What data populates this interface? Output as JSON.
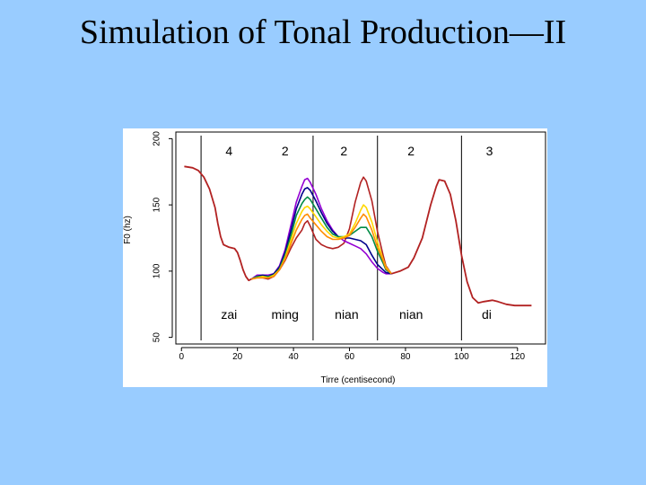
{
  "slide": {
    "title": "Simulation of Tonal Production—II"
  },
  "chart_data": {
    "type": "line",
    "title": "",
    "xlabel": "Tirre (centisecond)",
    "ylabel": "F0 (hz)",
    "xlim": [
      -2,
      130
    ],
    "ylim": [
      45,
      205
    ],
    "x_ticks": [
      0,
      20,
      40,
      60,
      80,
      100,
      120
    ],
    "y_ticks": [
      50,
      100,
      150,
      200
    ],
    "grid": false,
    "boundaries": [
      7,
      47,
      70,
      100
    ],
    "tones": [
      {
        "x": 17,
        "label": "4"
      },
      {
        "x": 37,
        "label": "2"
      },
      {
        "x": 58,
        "label": "2"
      },
      {
        "x": 82,
        "label": "2"
      },
      {
        "x": 110,
        "label": "3"
      }
    ],
    "syllables": [
      {
        "x": 17,
        "label": "zai"
      },
      {
        "x": 37,
        "label": "ming"
      },
      {
        "x": 59,
        "label": "nian"
      },
      {
        "x": 82,
        "label": "nian"
      },
      {
        "x": 109,
        "label": "di"
      }
    ],
    "common_start": [
      [
        1,
        179
      ],
      [
        4,
        178
      ],
      [
        6,
        176
      ],
      [
        8,
        171
      ],
      [
        10,
        162
      ],
      [
        12,
        148
      ],
      [
        13,
        136
      ],
      [
        14,
        126
      ],
      [
        15,
        120
      ],
      [
        17,
        118
      ],
      [
        19,
        117
      ],
      [
        20,
        114
      ],
      [
        21,
        108
      ],
      [
        22,
        101
      ],
      [
        23,
        96
      ],
      [
        24,
        93
      ],
      [
        25,
        94
      ]
    ],
    "common_end": [
      [
        75,
        98
      ],
      [
        78,
        100
      ],
      [
        81,
        103
      ],
      [
        83,
        110
      ],
      [
        86,
        125
      ],
      [
        89,
        150
      ],
      [
        91,
        164
      ],
      [
        92,
        169
      ],
      [
        94,
        168
      ],
      [
        96,
        158
      ],
      [
        98,
        138
      ],
      [
        100,
        112
      ],
      [
        102,
        92
      ],
      [
        104,
        80
      ],
      [
        106,
        76
      ],
      [
        108,
        77
      ],
      [
        111,
        78
      ],
      [
        113,
        77
      ],
      [
        116,
        75
      ],
      [
        119,
        74
      ],
      [
        122,
        74
      ],
      [
        125,
        74
      ]
    ],
    "series": [
      {
        "color": "#b22222",
        "values": [
          [
            25,
            94
          ],
          [
            27,
            95
          ],
          [
            29,
            95
          ],
          [
            31,
            94
          ],
          [
            33,
            96
          ],
          [
            35,
            101
          ],
          [
            37,
            108
          ],
          [
            39,
            117
          ],
          [
            41,
            125
          ],
          [
            43,
            131
          ],
          [
            44,
            136
          ],
          [
            45,
            138
          ],
          [
            46,
            134
          ],
          [
            47,
            129
          ],
          [
            48,
            124
          ],
          [
            50,
            120
          ],
          [
            52,
            118
          ],
          [
            54,
            117
          ],
          [
            56,
            118
          ],
          [
            58,
            121
          ],
          [
            60,
            132
          ],
          [
            62,
            152
          ],
          [
            64,
            167
          ],
          [
            65,
            171
          ],
          [
            66,
            168
          ],
          [
            68,
            153
          ],
          [
            70,
            130
          ],
          [
            72,
            112
          ],
          [
            73,
            104
          ],
          [
            75,
            98
          ]
        ]
      },
      {
        "color": "#9400d3",
        "values": [
          [
            25,
            94
          ],
          [
            27,
            97
          ],
          [
            29,
            97
          ],
          [
            31,
            97
          ],
          [
            33,
            98
          ],
          [
            35,
            104
          ],
          [
            37,
            116
          ],
          [
            39,
            134
          ],
          [
            41,
            152
          ],
          [
            43,
            164
          ],
          [
            44,
            169
          ],
          [
            45,
            170
          ],
          [
            46,
            167
          ],
          [
            48,
            158
          ],
          [
            50,
            147
          ],
          [
            52,
            138
          ],
          [
            54,
            131
          ],
          [
            56,
            126
          ],
          [
            58,
            123
          ],
          [
            60,
            121
          ],
          [
            62,
            119
          ],
          [
            64,
            117
          ],
          [
            66,
            113
          ],
          [
            68,
            107
          ],
          [
            70,
            102
          ],
          [
            72,
            99
          ],
          [
            73,
            98
          ],
          [
            75,
            98
          ]
        ]
      },
      {
        "color": "#00008b",
        "values": [
          [
            25,
            94
          ],
          [
            27,
            96
          ],
          [
            29,
            97
          ],
          [
            31,
            96
          ],
          [
            33,
            98
          ],
          [
            35,
            103
          ],
          [
            37,
            114
          ],
          [
            39,
            130
          ],
          [
            41,
            147
          ],
          [
            43,
            158
          ],
          [
            44,
            162
          ],
          [
            45,
            163
          ],
          [
            46,
            161
          ],
          [
            48,
            153
          ],
          [
            50,
            144
          ],
          [
            52,
            136
          ],
          [
            54,
            130
          ],
          [
            56,
            126
          ],
          [
            58,
            125
          ],
          [
            60,
            125
          ],
          [
            62,
            124
          ],
          [
            64,
            123
          ],
          [
            66,
            120
          ],
          [
            68,
            112
          ],
          [
            70,
            105
          ],
          [
            72,
            101
          ],
          [
            73,
            99
          ],
          [
            75,
            98
          ]
        ]
      },
      {
        "color": "#008b45",
        "values": [
          [
            25,
            94
          ],
          [
            27,
            96
          ],
          [
            29,
            96
          ],
          [
            31,
            96
          ],
          [
            33,
            97
          ],
          [
            35,
            102
          ],
          [
            37,
            112
          ],
          [
            39,
            126
          ],
          [
            41,
            142
          ],
          [
            43,
            151
          ],
          [
            44,
            154
          ],
          [
            45,
            156
          ],
          [
            46,
            154
          ],
          [
            48,
            147
          ],
          [
            50,
            140
          ],
          [
            52,
            133
          ],
          [
            54,
            128
          ],
          [
            56,
            126
          ],
          [
            58,
            126
          ],
          [
            60,
            127
          ],
          [
            62,
            130
          ],
          [
            64,
            133
          ],
          [
            66,
            133
          ],
          [
            68,
            126
          ],
          [
            70,
            115
          ],
          [
            72,
            106
          ],
          [
            73,
            101
          ],
          [
            75,
            98
          ]
        ]
      },
      {
        "color": "#ffd700",
        "values": [
          [
            25,
            94
          ],
          [
            27,
            95
          ],
          [
            29,
            96
          ],
          [
            31,
            95
          ],
          [
            33,
            97
          ],
          [
            35,
            101
          ],
          [
            37,
            110
          ],
          [
            39,
            123
          ],
          [
            41,
            136
          ],
          [
            43,
            145
          ],
          [
            44,
            148
          ],
          [
            45,
            149
          ],
          [
            46,
            147
          ],
          [
            48,
            141
          ],
          [
            50,
            135
          ],
          [
            52,
            130
          ],
          [
            54,
            126
          ],
          [
            56,
            125
          ],
          [
            58,
            126
          ],
          [
            60,
            128
          ],
          [
            62,
            136
          ],
          [
            64,
            146
          ],
          [
            65,
            150
          ],
          [
            66,
            148
          ],
          [
            68,
            137
          ],
          [
            70,
            122
          ],
          [
            72,
            109
          ],
          [
            73,
            103
          ],
          [
            75,
            98
          ]
        ]
      },
      {
        "color": "#ff8c00",
        "values": [
          [
            25,
            94
          ],
          [
            27,
            95
          ],
          [
            29,
            95
          ],
          [
            31,
            95
          ],
          [
            33,
            96
          ],
          [
            35,
            101
          ],
          [
            37,
            109
          ],
          [
            39,
            120
          ],
          [
            41,
            131
          ],
          [
            43,
            139
          ],
          [
            44,
            142
          ],
          [
            45,
            143
          ],
          [
            46,
            140
          ],
          [
            48,
            135
          ],
          [
            50,
            130
          ],
          [
            52,
            126
          ],
          [
            54,
            124
          ],
          [
            56,
            124
          ],
          [
            58,
            125
          ],
          [
            60,
            127
          ],
          [
            62,
            133
          ],
          [
            64,
            140
          ],
          [
            65,
            143
          ],
          [
            66,
            141
          ],
          [
            68,
            131
          ],
          [
            70,
            118
          ],
          [
            72,
            108
          ],
          [
            73,
            102
          ],
          [
            75,
            98
          ]
        ]
      }
    ]
  }
}
